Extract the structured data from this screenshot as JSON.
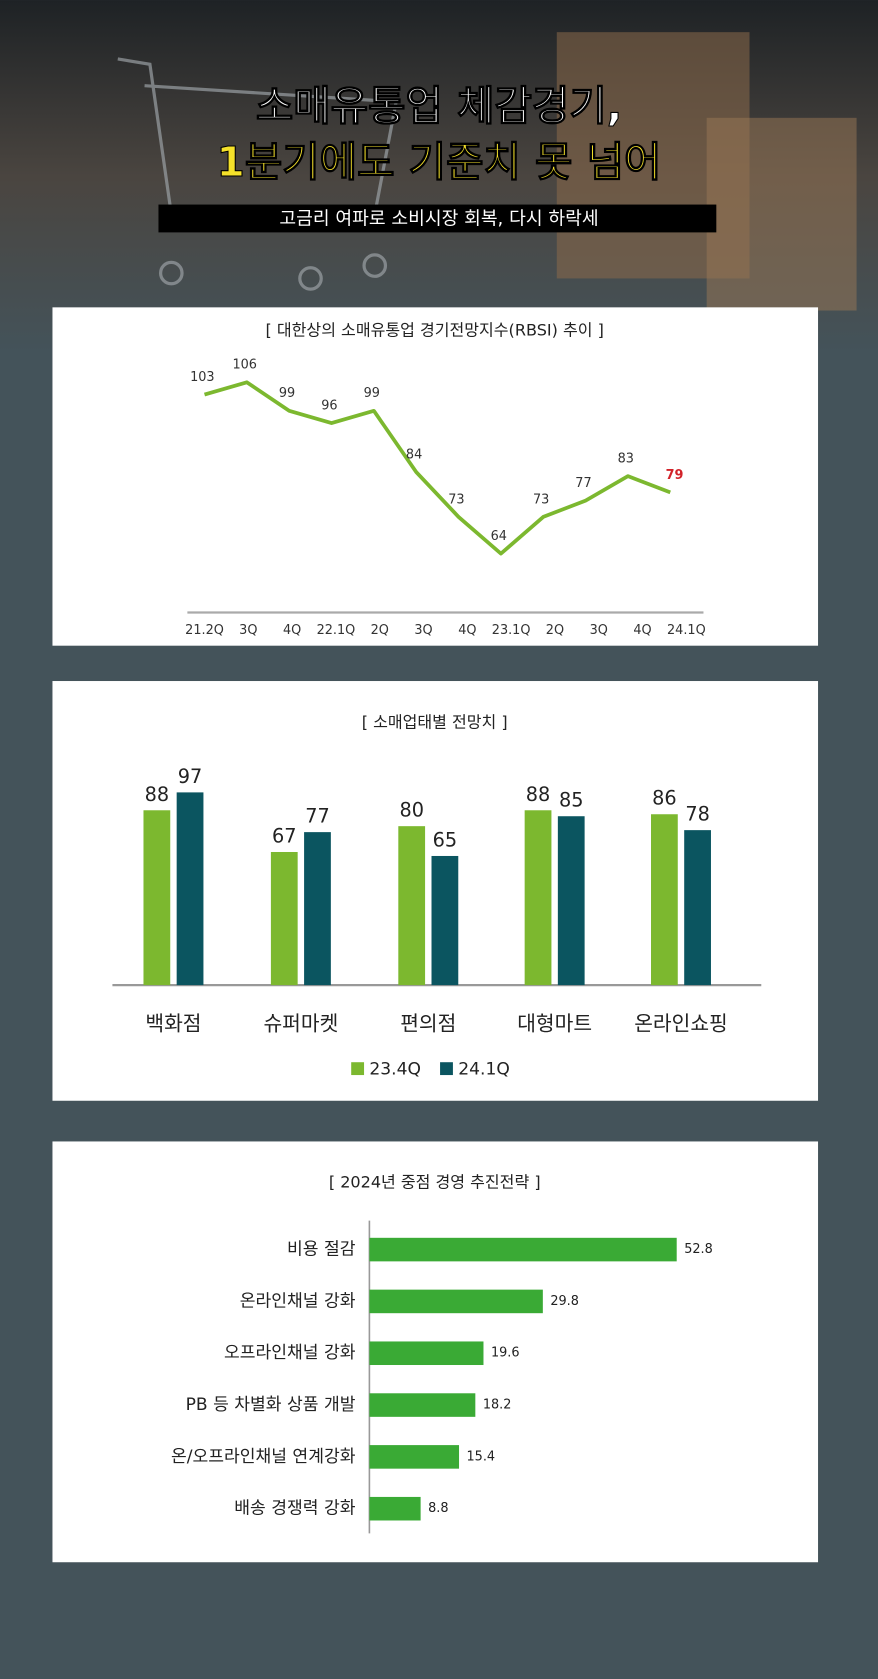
{
  "header": {
    "title_line1": "소매유통업 체감경기,",
    "title_line2": "1분기에도 기준치 못 넘어",
    "subtitle": "고금리 여파로 소비시장 회복, 다시 하락세"
  },
  "chart_data": [
    {
      "type": "line",
      "title": "[ 대한상의 소매유통업 경기전망지수(RBSI) 추이 ]",
      "categories": [
        "21.2Q",
        "3Q",
        "4Q",
        "22.1Q",
        "2Q",
        "3Q",
        "4Q",
        "23.1Q",
        "2Q",
        "3Q",
        "4Q",
        "24.1Q"
      ],
      "values": [
        103,
        106,
        99,
        96,
        99,
        84,
        73,
        64,
        73,
        77,
        83,
        79
      ],
      "color": "#7cb82f"
    },
    {
      "type": "grouped-bar",
      "title": "[ 소매업태별 전망치 ]",
      "categories": [
        "백화점",
        "슈퍼마켓",
        "편의점",
        "대형마트",
        "온라인쇼핑"
      ],
      "series": [
        {
          "name": "23.4Q",
          "color": "#7cb82f",
          "values": [
            88,
            67,
            80,
            88,
            86
          ]
        },
        {
          "name": "24.1Q",
          "color": "#0b5560",
          "values": [
            97,
            77,
            65,
            85,
            78
          ]
        }
      ]
    },
    {
      "type": "hbar",
      "title": "[ 2024년 중점 경영 추진전략 ]",
      "categories": [
        "비용 절감",
        "온라인채널 강화",
        "오프라인채널 강화",
        "PB 등 차별화 상품 개발",
        "온/오프라인채널 연계강화",
        "배송 경쟁력 강화"
      ],
      "values": [
        52.8,
        29.8,
        19.6,
        18.2,
        15.4,
        8.8
      ],
      "color": "#3aaa35"
    }
  ]
}
